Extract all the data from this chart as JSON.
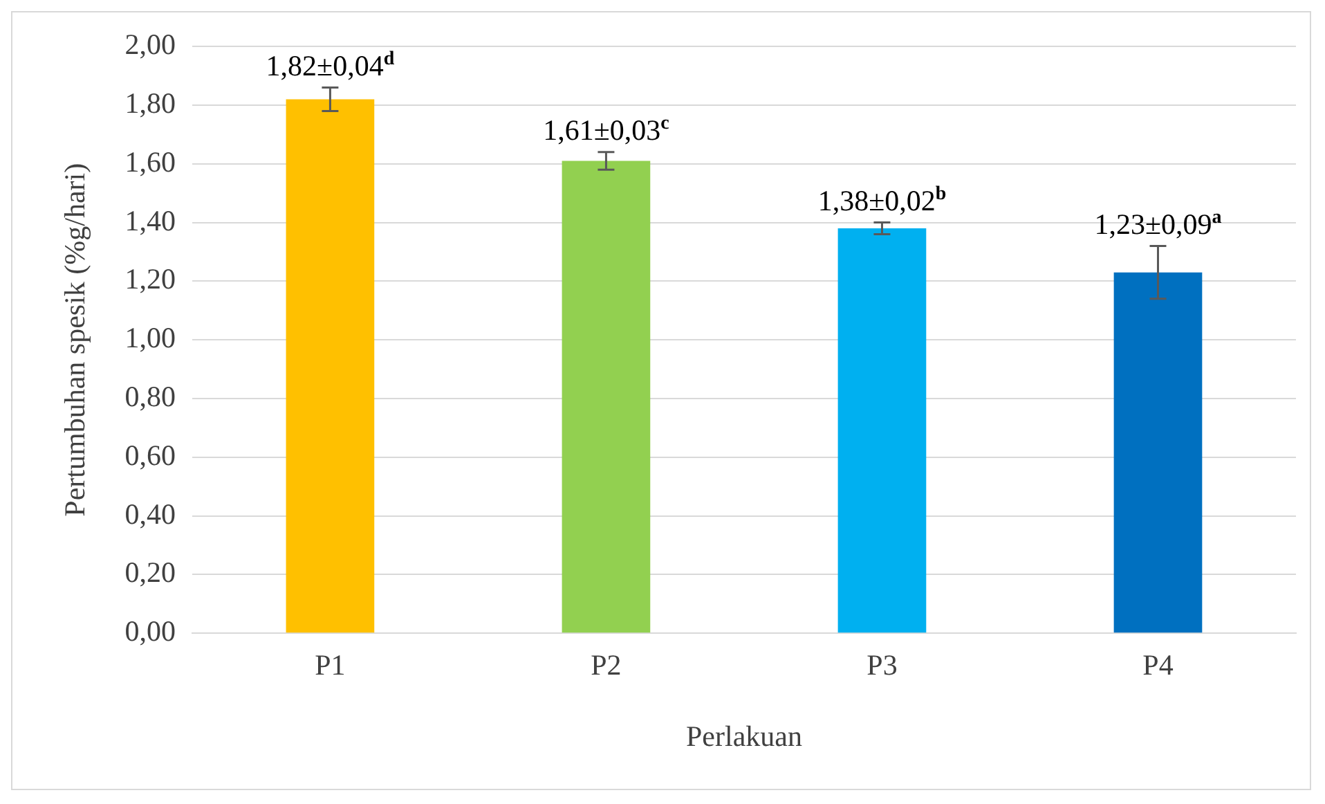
{
  "chart_data": {
    "type": "bar",
    "xlabel": "Perlakuan",
    "ylabel": "Pertumbuhan spesik (%g/hari)",
    "categories": [
      "P1",
      "P2",
      "P3",
      "P4"
    ],
    "values": [
      1.82,
      1.61,
      1.38,
      1.23
    ],
    "colors": [
      "#ffc000",
      "#92d050",
      "#00b0f0",
      "#0070c0"
    ],
    "errors": [
      0.04,
      0.03,
      0.02,
      0.09
    ],
    "value_labels": [
      "1,82±0,04$^{d}$",
      "1,61±0,03$^{c}$",
      "1,38±0,02$^{b}$",
      "1,23±0,09$^{a}$"
    ],
    "ylim": [
      0,
      2
    ],
    "yticks": [
      {
        "value": 0,
        "label": "0,00"
      },
      {
        "value": 0.2,
        "label": "0,20"
      },
      {
        "value": 0.4,
        "label": "0,40"
      },
      {
        "value": 0.6,
        "label": "0,60"
      },
      {
        "value": 0.8,
        "label": "0,80"
      },
      {
        "value": 1,
        "label": "1,00"
      },
      {
        "value": 1.2,
        "label": "1,20"
      },
      {
        "value": 1.4,
        "label": "1,40"
      },
      {
        "value": 1.6,
        "label": "1,60"
      },
      {
        "value": 1.8,
        "label": "1,80"
      },
      {
        "value": 2,
        "label": "2,00"
      }
    ],
    "grid": "y",
    "legend": false
  }
}
